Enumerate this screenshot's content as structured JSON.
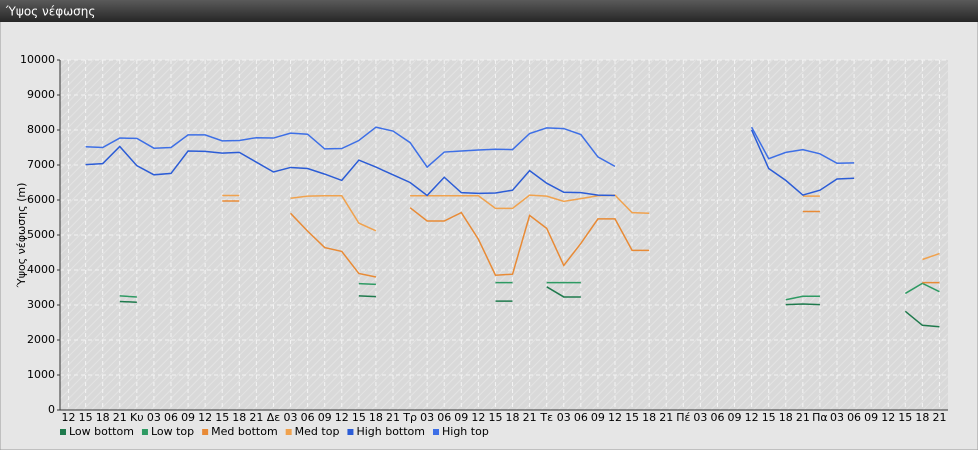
{
  "chart_data": {
    "type": "line",
    "title": "Ύψος νέφωσης",
    "y_label": "Ύψος νέφωσης (m)",
    "categories": [
      "12",
      "15",
      "18",
      "21",
      "Κυ",
      "03",
      "06",
      "09",
      "12",
      "15",
      "18",
      "21",
      "Δε",
      "03",
      "06",
      "09",
      "12",
      "15",
      "18",
      "21",
      "Τρ",
      "03",
      "06",
      "09",
      "12",
      "15",
      "18",
      "21",
      "Τε",
      "03",
      "06",
      "09",
      "12",
      "15",
      "18",
      "21",
      "Πέ",
      "03",
      "06",
      "09",
      "12",
      "15",
      "18",
      "21",
      "Πα",
      "03",
      "06",
      "09",
      "12",
      "15",
      "18",
      "21"
    ],
    "ylim": [
      0,
      10000
    ],
    "yticks": [
      0,
      1000,
      2000,
      3000,
      4000,
      5000,
      6000,
      7000,
      8000,
      9000,
      10000
    ],
    "grid": true,
    "legend": "bottom",
    "series": [
      {
        "name": "Low bottom",
        "color": "#1f7a4d",
        "values": [
          null,
          null,
          null,
          3100,
          3080,
          null,
          null,
          null,
          null,
          null,
          null,
          null,
          null,
          null,
          null,
          null,
          null,
          3260,
          3240,
          null,
          null,
          null,
          null,
          null,
          null,
          3110,
          3110,
          null,
          3520,
          3230,
          3230,
          null,
          null,
          null,
          null,
          null,
          null,
          null,
          null,
          null,
          null,
          null,
          3010,
          3030,
          3010,
          null,
          null,
          null,
          null,
          2820,
          2420,
          2380
        ]
      },
      {
        "name": "Low top",
        "color": "#2e9a63",
        "values": [
          null,
          null,
          null,
          3260,
          3230,
          null,
          null,
          null,
          null,
          null,
          null,
          null,
          null,
          null,
          null,
          null,
          null,
          3610,
          3590,
          null,
          null,
          null,
          null,
          null,
          null,
          3640,
          3640,
          null,
          3640,
          3640,
          3640,
          null,
          null,
          null,
          null,
          null,
          null,
          null,
          null,
          null,
          null,
          null,
          3150,
          3250,
          3250,
          null,
          null,
          null,
          null,
          3330,
          3620,
          3380
        ]
      },
      {
        "name": "Med bottom",
        "color": "#e88a35",
        "values": [
          null,
          null,
          null,
          null,
          null,
          null,
          null,
          null,
          null,
          5970,
          5970,
          null,
          null,
          5620,
          5110,
          4640,
          4530,
          3900,
          3800,
          null,
          5780,
          5400,
          5400,
          5640,
          4880,
          3850,
          3880,
          5560,
          5190,
          4130,
          4760,
          5460,
          5460,
          4560,
          4560,
          null,
          null,
          null,
          null,
          null,
          null,
          null,
          null,
          5670,
          5670,
          null,
          null,
          null,
          null,
          null,
          3640,
          3640
        ]
      },
      {
        "name": "Med top",
        "color": "#f0a24e",
        "values": [
          null,
          null,
          null,
          null,
          null,
          null,
          null,
          null,
          null,
          6130,
          6130,
          null,
          null,
          6050,
          6110,
          6120,
          6120,
          5340,
          5120,
          null,
          6120,
          6120,
          6120,
          6120,
          6120,
          5760,
          5760,
          6140,
          6110,
          5960,
          6040,
          6120,
          6140,
          5640,
          5620,
          null,
          null,
          null,
          null,
          null,
          null,
          null,
          null,
          6110,
          6110,
          null,
          null,
          null,
          null,
          null,
          4300,
          4470
        ]
      },
      {
        "name": "High bottom",
        "color": "#2b5cd6",
        "values": [
          null,
          7010,
          7040,
          7530,
          6980,
          6720,
          6760,
          7400,
          7390,
          7340,
          7360,
          7080,
          6800,
          6930,
          6900,
          6740,
          6560,
          7140,
          6940,
          6720,
          6500,
          6130,
          6650,
          6210,
          6190,
          6200,
          6280,
          6840,
          6480,
          6220,
          6210,
          6140,
          6130,
          null,
          null,
          null,
          null,
          null,
          null,
          null,
          8000,
          6900,
          6560,
          6140,
          6280,
          6600,
          6620,
          null,
          null,
          null,
          null,
          null
        ]
      },
      {
        "name": "High top",
        "color": "#3d6fe6",
        "values": [
          null,
          7520,
          7500,
          7770,
          7760,
          7480,
          7500,
          7860,
          7860,
          7690,
          7700,
          7780,
          7770,
          7910,
          7880,
          7460,
          7470,
          7700,
          8080,
          7970,
          7640,
          6940,
          7370,
          7400,
          7430,
          7450,
          7440,
          7900,
          8060,
          8040,
          7870,
          7230,
          6960,
          null,
          null,
          null,
          null,
          null,
          null,
          null,
          8080,
          7180,
          7360,
          7440,
          7320,
          7050,
          7060,
          null,
          null,
          null,
          null,
          null
        ]
      }
    ]
  }
}
